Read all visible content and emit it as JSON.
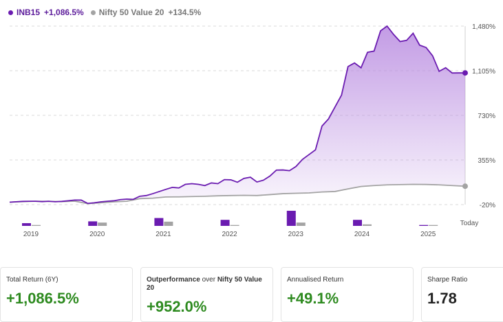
{
  "legend": {
    "series1_name": "INB15",
    "series1_return": "+1,086.5%",
    "series2_name": "Nifty 50 Value 20",
    "series2_return": "+134.5%"
  },
  "colors": {
    "primary": "#6a1bb0",
    "benchmark": "#a3a3a3",
    "positive": "#2d8a1f"
  },
  "chart_data": {
    "type": "line",
    "x_labels": [
      "2019",
      "2020",
      "2021",
      "2022",
      "2023",
      "2024",
      "2025",
      "Today"
    ],
    "y_ticks": [
      "1,480%",
      "1,105%",
      "730%",
      "355%",
      "-20%"
    ],
    "ylim": [
      -20,
      1480
    ],
    "yearly_bar_heights_pct": {
      "primary": [
        0.18,
        0.3,
        0.52,
        0.4,
        1.0,
        0.4,
        0.06
      ],
      "benchmark": [
        0.06,
        0.22,
        0.28,
        0.06,
        0.22,
        0.1,
        0.06
      ]
    },
    "series": [
      {
        "name": "INB15",
        "x": [
          0,
          0.25,
          0.5,
          0.75,
          1,
          1.25,
          1.5,
          1.75,
          2,
          2.25,
          2.5,
          2.75,
          3,
          3.25,
          3.5,
          3.75,
          4,
          4.25,
          4.5,
          4.75,
          5,
          5.25,
          5.5,
          5.75,
          6,
          6.25,
          6.5,
          6.75,
          7,
          7.25,
          7.5,
          7.75,
          8,
          8.25,
          8.5,
          8.75,
          9,
          9.25,
          9.5,
          9.75,
          10,
          10.25,
          10.5,
          10.75,
          11,
          11.25,
          11.5,
          11.75,
          12,
          12.25,
          12.5,
          12.75,
          13,
          13.25,
          13.5,
          13.75,
          14,
          14.25,
          14.5,
          14.75,
          15,
          15.25,
          15.5,
          15.75,
          16,
          16.25,
          16.5,
          16.75,
          17,
          17.25,
          17.5
        ],
        "values": [
          0,
          4,
          7,
          8,
          8,
          5,
          8,
          4,
          7,
          12,
          18,
          18,
          -10,
          -5,
          3,
          8,
          12,
          22,
          26,
          24,
          50,
          56,
          72,
          90,
          108,
          125,
          120,
          150,
          156,
          150,
          140,
          162,
          156,
          190,
          188,
          168,
          200,
          210,
          170,
          185,
          220,
          270,
          271,
          265,
          300,
          360,
          400,
          440,
          640,
          700,
          800,
          900,
          1140,
          1170,
          1130,
          1260,
          1270,
          1440,
          1480,
          1410,
          1350,
          1360,
          1420,
          1320,
          1300,
          1230,
          1100,
          1130,
          1086,
          1086.5,
          1086.5
        ]
      },
      {
        "name": "Nifty 50 Value 20",
        "x": [
          0,
          0.5,
          1,
          1.5,
          2,
          2.5,
          3,
          3.5,
          4,
          4.5,
          5,
          5.5,
          6,
          6.5,
          7,
          7.5,
          8,
          8.5,
          9,
          9.5,
          10,
          10.5,
          11,
          11.5,
          12,
          12.5,
          13,
          13.5,
          14,
          14.5,
          15,
          15.5,
          16,
          16.5,
          17,
          17.5
        ],
        "values": [
          0,
          5,
          8,
          7,
          5,
          9,
          -12,
          -5,
          3,
          8,
          30,
          34,
          44,
          45,
          48,
          50,
          54,
          56,
          58,
          56,
          64,
          72,
          75,
          78,
          86,
          90,
          112,
          132,
          140,
          146,
          148,
          150,
          149,
          146,
          140,
          134.5
        ]
      }
    ]
  },
  "cards": [
    {
      "label": "Total Return (6Y)",
      "value": "+1,086.5%"
    },
    {
      "label_prefix": "Outperformance",
      "label_mid": " over ",
      "label_bold": "Nifty 50 Value 20",
      "value": "+952.0%"
    },
    {
      "label": "Annualised Return",
      "value": "+49.1%"
    },
    {
      "label": "Sharpe Ratio",
      "value": "1.78"
    }
  ]
}
